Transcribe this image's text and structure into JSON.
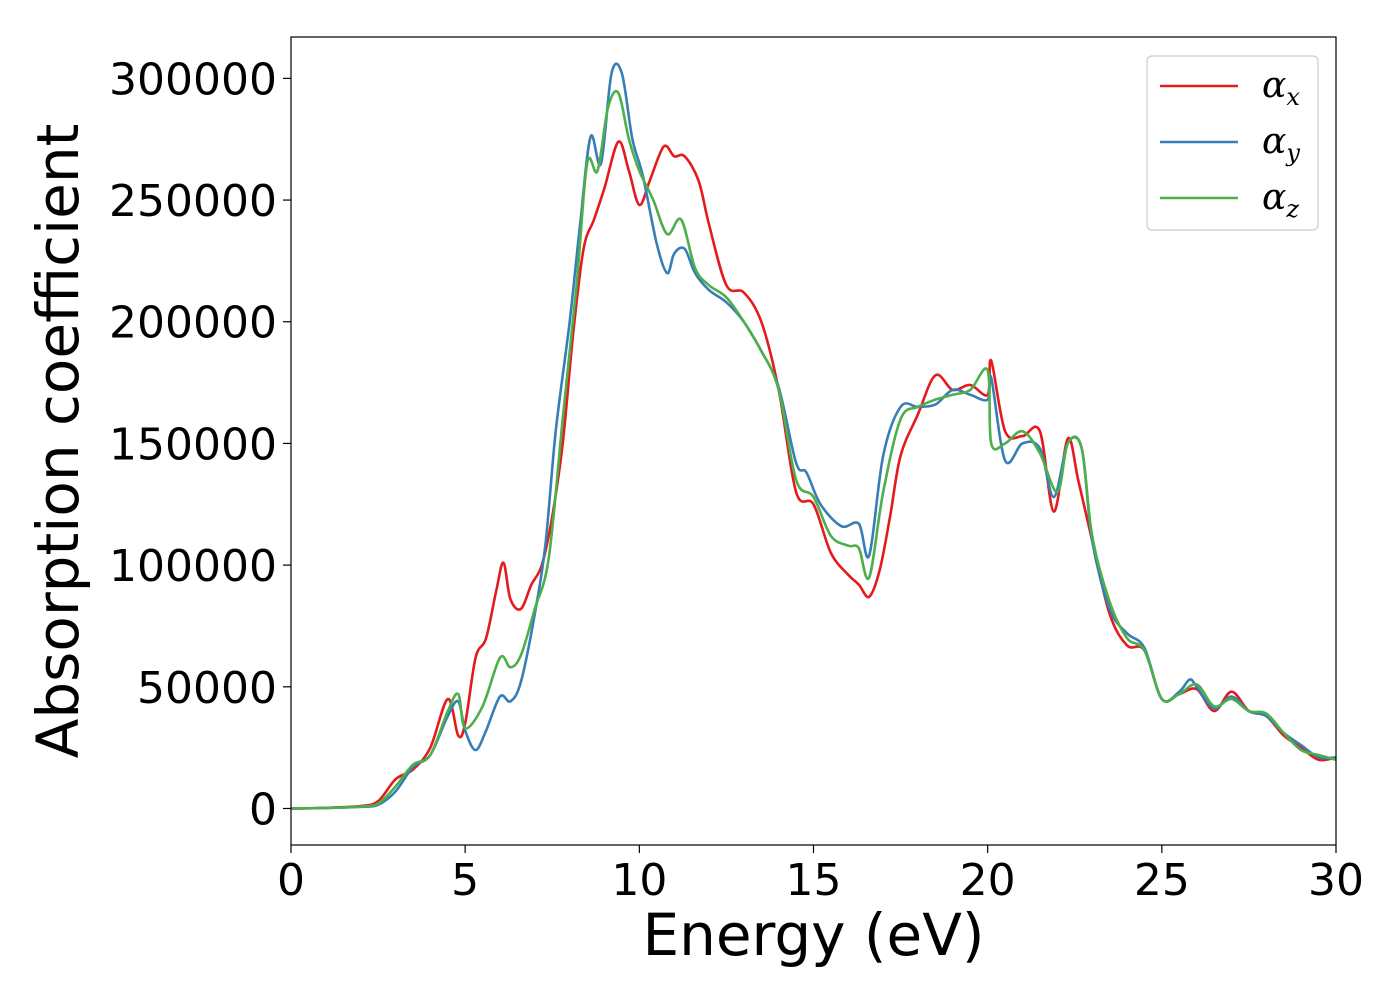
{
  "chart_data": {
    "type": "line",
    "xlabel": "Energy (eV)",
    "ylabel": "Absorption coefficient",
    "xlim": [
      0,
      30
    ],
    "ylim": [
      -15000,
      317000
    ],
    "xticks": [
      0,
      5,
      10,
      15,
      20,
      25,
      30
    ],
    "yticks": [
      0,
      50000,
      100000,
      150000,
      200000,
      250000,
      300000
    ],
    "xtick_labels": [
      "0",
      "5",
      "10",
      "15",
      "20",
      "25",
      "30"
    ],
    "ytick_labels": [
      "0",
      "50000",
      "100000",
      "150000",
      "200000",
      "250000",
      "300000"
    ],
    "grid": false,
    "legend_position": "top-right",
    "series": [
      {
        "name": "α_x",
        "symbol": "α",
        "subscript": "x",
        "color": "#e41a1c",
        "x": [
          0,
          1,
          2,
          2.5,
          3,
          3.5,
          4,
          4.5,
          4.8,
          5,
          5.3,
          5.6,
          5.9,
          6.1,
          6.3,
          6.6,
          6.9,
          7.2,
          7.5,
          7.8,
          8.1,
          8.4,
          8.7,
          9,
          9.4,
          9.7,
          10,
          10.3,
          10.7,
          11,
          11.3,
          11.7,
          12,
          12.5,
          13,
          13.5,
          14,
          14.5,
          15,
          15.5,
          16,
          16.3,
          16.6,
          16.9,
          17.2,
          17.5,
          18,
          18.5,
          19,
          19.5,
          20,
          20.1,
          20.5,
          21,
          21.5,
          21.9,
          22.3,
          22.6,
          23,
          23.5,
          24,
          24.5,
          25,
          25.5,
          26,
          26.5,
          27,
          27.5,
          28,
          28.5,
          29,
          29.5,
          30
        ],
        "y": [
          0,
          300,
          1000,
          3000,
          12000,
          16000,
          25000,
          45000,
          30000,
          35000,
          62000,
          70000,
          90000,
          101000,
          86000,
          82000,
          92000,
          100000,
          120000,
          150000,
          195000,
          230000,
          242000,
          255000,
          274000,
          262000,
          248000,
          258000,
          272000,
          268000,
          268000,
          258000,
          240000,
          215000,
          212000,
          200000,
          172000,
          130000,
          125000,
          105000,
          96000,
          92000,
          87000,
          98000,
          120000,
          145000,
          162000,
          178000,
          172000,
          174000,
          170000,
          184000,
          155000,
          153000,
          155000,
          122000,
          152000,
          135000,
          110000,
          80000,
          67000,
          65000,
          45000,
          47000,
          49000,
          40000,
          48000,
          40000,
          38000,
          30000,
          25000,
          20000,
          21000
        ]
      },
      {
        "name": "α_y",
        "symbol": "α",
        "subscript": "y",
        "color": "#377eb8",
        "x": [
          0,
          1,
          2,
          2.5,
          3,
          3.5,
          4,
          4.5,
          4.8,
          5,
          5.3,
          5.6,
          6,
          6.3,
          6.6,
          7,
          7.3,
          7.6,
          8,
          8.3,
          8.6,
          8.9,
          9.2,
          9.5,
          9.8,
          10.1,
          10.5,
          10.8,
          11,
          11.3,
          11.6,
          12,
          12.5,
          13,
          13.5,
          14,
          14.5,
          14.8,
          15.2,
          15.8,
          16.3,
          16.6,
          17,
          17.5,
          18,
          18.5,
          19,
          19.5,
          20,
          20.1,
          20.5,
          21,
          21.5,
          21.9,
          22.3,
          22.7,
          23,
          23.5,
          24,
          24.5,
          25,
          25.5,
          25.8,
          26,
          26.5,
          27,
          27.5,
          28,
          28.5,
          29,
          29.5,
          30
        ],
        "y": [
          0,
          200,
          700,
          1500,
          7000,
          17000,
          22000,
          38000,
          44000,
          32000,
          24000,
          32000,
          46000,
          44000,
          52000,
          80000,
          108000,
          155000,
          200000,
          240000,
          276000,
          265000,
          302000,
          302000,
          275000,
          260000,
          232000,
          220000,
          228000,
          230000,
          220000,
          213000,
          208000,
          200000,
          188000,
          173000,
          142000,
          138000,
          125000,
          116000,
          117000,
          104000,
          145000,
          165000,
          165000,
          166000,
          172000,
          170000,
          168000,
          177000,
          143000,
          150000,
          148000,
          128000,
          150000,
          148000,
          110000,
          82000,
          72000,
          66000,
          45000,
          48000,
          53000,
          50000,
          41000,
          46000,
          40000,
          38000,
          31000,
          26000,
          21000,
          21000
        ]
      },
      {
        "name": "α_z",
        "symbol": "α",
        "subscript": "z",
        "color": "#4daf4a",
        "x": [
          0,
          1,
          2,
          2.5,
          3,
          3.5,
          4,
          4.5,
          4.8,
          5,
          5.5,
          6,
          6.3,
          6.6,
          7,
          7.4,
          7.8,
          8.2,
          8.5,
          8.8,
          9.1,
          9.4,
          9.7,
          10,
          10.4,
          10.8,
          11.2,
          11.6,
          12,
          12.5,
          13,
          13.5,
          14,
          14.5,
          15,
          15.5,
          16,
          16.3,
          16.6,
          17,
          17.5,
          18,
          18.5,
          19,
          19.5,
          20,
          20.1,
          20.5,
          21,
          21.5,
          22,
          22.3,
          22.7,
          23,
          23.5,
          24,
          24.5,
          25,
          25.5,
          26,
          26.5,
          27,
          27.5,
          28,
          28.5,
          29,
          29.5,
          30
        ],
        "y": [
          0,
          200,
          800,
          2000,
          9000,
          18000,
          22000,
          40000,
          47000,
          33000,
          42000,
          62000,
          58000,
          63000,
          82000,
          103000,
          160000,
          215000,
          265000,
          262000,
          288000,
          294000,
          275000,
          262000,
          250000,
          236000,
          242000,
          222000,
          215000,
          210000,
          200000,
          188000,
          172000,
          135000,
          128000,
          112000,
          108000,
          107000,
          95000,
          130000,
          160000,
          165000,
          168000,
          170000,
          172000,
          180000,
          150000,
          150000,
          155000,
          146000,
          130000,
          150000,
          148000,
          112000,
          85000,
          70000,
          65000,
          45000,
          47000,
          51000,
          42000,
          45000,
          40000,
          39000,
          31000,
          24000,
          22000,
          20000
        ]
      }
    ]
  }
}
